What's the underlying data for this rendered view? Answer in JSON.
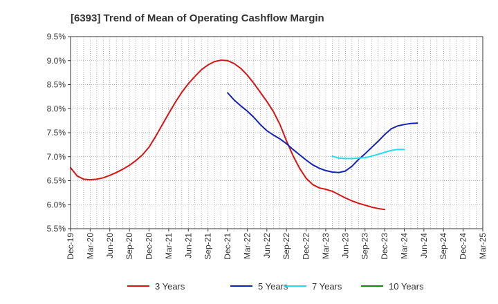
{
  "chart_data": {
    "type": "line",
    "title": "[6393]  Trend of Mean of Operating Cashflow Margin",
    "xlabel": "",
    "ylabel": "",
    "ylim": [
      5.5,
      9.5
    ],
    "yticks": [
      "9.5%",
      "9.0%",
      "8.5%",
      "8.0%",
      "7.5%",
      "7.0%",
      "6.5%",
      "6.0%",
      "5.5%"
    ],
    "ytick_values": [
      9.5,
      9.0,
      8.5,
      8.0,
      7.5,
      7.0,
      6.5,
      6.0,
      5.5
    ],
    "xticks": [
      "Dec-19",
      "Mar-20",
      "Jun-20",
      "Sep-20",
      "Dec-20",
      "Mar-21",
      "Jun-21",
      "Sep-21",
      "Dec-21",
      "Mar-22",
      "Jun-22",
      "Sep-22",
      "Dec-22",
      "Mar-23",
      "Jun-23",
      "Sep-23",
      "Dec-23",
      "Mar-24",
      "Jun-24",
      "Sep-24",
      "Dec-24",
      "Mar-25"
    ],
    "grid": true,
    "legend_position": "bottom",
    "series": [
      {
        "name": "3 Years",
        "color": "#dd1111",
        "start_index": 0,
        "values": [
          6.77,
          6.6,
          6.53,
          6.52,
          6.53,
          6.56,
          6.61,
          6.67,
          6.74,
          6.82,
          6.92,
          7.04,
          7.2,
          7.42,
          7.66,
          7.9,
          8.13,
          8.34,
          8.52,
          8.67,
          8.81,
          8.91,
          8.98,
          9.01,
          9.0,
          8.94,
          8.84,
          8.7,
          8.53,
          8.34,
          8.15,
          7.94,
          7.67,
          7.33,
          7.02,
          6.76,
          6.55,
          6.42,
          6.35,
          6.32,
          6.28,
          6.21,
          6.14,
          6.08,
          6.03,
          5.99,
          5.95,
          5.92,
          5.9
        ]
      },
      {
        "name": "5 Years",
        "color": "#1122bb",
        "start_index": 24,
        "values": [
          8.33,
          8.18,
          8.06,
          7.95,
          7.82,
          7.67,
          7.54,
          7.45,
          7.37,
          7.27,
          7.15,
          7.04,
          6.93,
          6.83,
          6.76,
          6.71,
          6.68,
          6.67,
          6.7,
          6.8,
          6.94,
          7.06,
          7.19,
          7.32,
          7.46,
          7.58,
          7.64,
          7.67,
          7.69,
          7.7
        ]
      },
      {
        "name": "7 Years",
        "color": "#22ddee",
        "start_index": 40,
        "values": [
          7.01,
          6.97,
          6.96,
          6.96,
          6.97,
          6.98,
          7.01,
          7.05,
          7.09,
          7.13,
          7.15,
          7.15
        ]
      },
      {
        "name": "10 Years",
        "color": "#118811",
        "start_index": 0,
        "values": []
      }
    ]
  }
}
